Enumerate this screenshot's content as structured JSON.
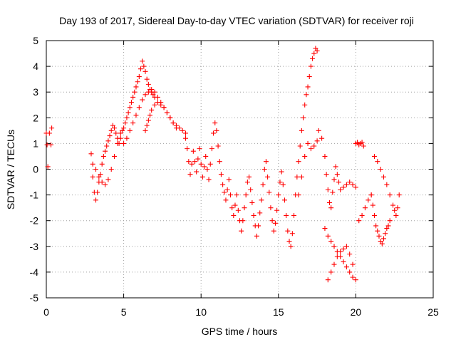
{
  "chart_data": {
    "type": "scatter",
    "title": "Day 193 of 2017, Sidereal Day-to-day VTEC variation (SDTVAR) for receiver roji",
    "xlabel": "GPS time / hours",
    "ylabel": "SDTVAR / TECUs",
    "xlim": [
      0,
      25
    ],
    "ylim": [
      -5,
      5
    ],
    "xticks": [
      0,
      5,
      10,
      15,
      20,
      25
    ],
    "yticks": [
      -5,
      -4,
      -3,
      -2,
      -1,
      0,
      1,
      2,
      3,
      4,
      5
    ],
    "grid": true,
    "marker": "+",
    "color": "#ff0000",
    "series": [
      {
        "name": "SDTVAR",
        "x": [
          0.0,
          0.05,
          0.1,
          0.2,
          0.3,
          0.35,
          2.9,
          3.0,
          3.1,
          3.2,
          3.3,
          3.4,
          3.5,
          3.6,
          3.7,
          3.8,
          3.9,
          4.0,
          4.1,
          4.2,
          4.3,
          4.4,
          4.5,
          4.6,
          4.7,
          4.8,
          4.9,
          3.0,
          3.2,
          3.4,
          3.6,
          3.8,
          4.0,
          4.2,
          4.4,
          4.6,
          4.8,
          5.0,
          5.1,
          5.2,
          5.3,
          5.4,
          5.5,
          5.6,
          5.7,
          5.8,
          5.9,
          6.0,
          6.1,
          6.2,
          6.3,
          6.4,
          6.5,
          6.6,
          6.7,
          6.8,
          6.9,
          7.0,
          5.0,
          5.2,
          5.4,
          5.6,
          5.8,
          6.0,
          6.2,
          6.4,
          6.6,
          6.8,
          7.0,
          7.2,
          7.4,
          7.6,
          7.8,
          8.0,
          8.2,
          8.4,
          6.4,
          6.5,
          6.6,
          6.7,
          6.8,
          7.0,
          7.2,
          7.4,
          7.6,
          7.8,
          8.0,
          8.2,
          8.4,
          8.6,
          8.8,
          9.0,
          9.0,
          9.1,
          9.2,
          9.3,
          9.4,
          9.5,
          9.6,
          9.7,
          9.8,
          9.9,
          10.0,
          10.1,
          10.2,
          10.3,
          10.4,
          10.5,
          10.6,
          10.7,
          10.8,
          10.9,
          11.0,
          11.1,
          11.2,
          11.3,
          11.4,
          11.5,
          11.6,
          11.7,
          11.8,
          11.9,
          12.0,
          12.1,
          12.2,
          12.3,
          12.4,
          12.5,
          12.6,
          12.7,
          12.8,
          12.9,
          13.0,
          13.1,
          13.2,
          13.3,
          13.4,
          13.5,
          13.6,
          13.7,
          13.8,
          13.9,
          14.0,
          14.1,
          14.2,
          14.3,
          14.4,
          14.5,
          14.6,
          14.7,
          14.8,
          14.9,
          15.0,
          15.1,
          15.2,
          15.3,
          15.4,
          15.5,
          15.6,
          15.7,
          15.8,
          15.9,
          16.0,
          16.1,
          16.2,
          16.3,
          16.4,
          16.5,
          16.6,
          16.7,
          16.8,
          16.9,
          17.0,
          17.1,
          17.2,
          17.3,
          17.4,
          17.5,
          16.3,
          16.5,
          16.7,
          16.9,
          17.1,
          17.3,
          17.5,
          17.6,
          17.8,
          18.0,
          18.1,
          18.2,
          18.3,
          18.4,
          18.5,
          18.6,
          18.7,
          18.8,
          18.9,
          19.0,
          19.2,
          19.4,
          19.6,
          19.8,
          20.0,
          18.0,
          18.2,
          18.4,
          18.6,
          18.8,
          19.0,
          19.2,
          19.4,
          19.6,
          19.8,
          18.2,
          18.4,
          18.6,
          18.8,
          19.0,
          19.2,
          19.4,
          19.6,
          19.8,
          20.0,
          20.2,
          20.4,
          20.6,
          20.8,
          21.0,
          20.0,
          20.1,
          20.2,
          20.3,
          20.4,
          20.5,
          21.0,
          21.1,
          21.2,
          21.3,
          21.4,
          21.5,
          21.6,
          21.7,
          21.8,
          21.9,
          22.0,
          22.1,
          22.2,
          21.2,
          21.4,
          21.6,
          21.8,
          22.0,
          22.2,
          22.4,
          22.5,
          22.6,
          22.7,
          22.8
        ],
        "y": [
          1.4,
          0.95,
          0.1,
          1.4,
          0.95,
          1.6,
          0.6,
          -0.3,
          -0.9,
          -1.2,
          -0.9,
          -0.5,
          -0.2,
          0.2,
          0.5,
          0.7,
          0.9,
          1.1,
          1.3,
          1.5,
          1.7,
          1.6,
          1.4,
          1.2,
          1.0,
          1.2,
          1.5,
          0.2,
          0.0,
          -0.3,
          -0.5,
          -0.6,
          -0.4,
          0.0,
          0.5,
          1.0,
          1.4,
          1.6,
          1.8,
          2.0,
          2.2,
          2.4,
          2.6,
          2.8,
          3.0,
          3.2,
          3.4,
          3.6,
          3.9,
          4.2,
          4.0,
          3.8,
          3.5,
          3.3,
          3.1,
          3.0,
          2.9,
          2.8,
          1.0,
          1.2,
          1.5,
          1.8,
          2.1,
          2.4,
          2.7,
          2.9,
          3.0,
          3.1,
          3.0,
          2.8,
          2.6,
          2.4,
          2.2,
          2.0,
          1.8,
          1.6,
          1.5,
          1.7,
          1.9,
          2.1,
          2.3,
          2.5,
          2.6,
          2.5,
          2.4,
          2.2,
          2.0,
          1.8,
          1.7,
          1.6,
          1.5,
          1.4,
          1.2,
          0.8,
          0.3,
          -0.2,
          0.2,
          0.7,
          0.3,
          -0.1,
          0.4,
          0.8,
          0.2,
          -0.3,
          0.1,
          0.5,
          0.0,
          -0.4,
          0.2,
          0.8,
          1.4,
          1.8,
          1.5,
          0.9,
          0.3,
          -0.2,
          -0.6,
          -0.9,
          -1.2,
          -0.8,
          -0.4,
          -1.0,
          -1.5,
          -1.8,
          -1.4,
          -1.0,
          -1.6,
          -2.0,
          -2.4,
          -2.0,
          -1.5,
          -1.0,
          -0.5,
          -0.3,
          -0.8,
          -1.3,
          -1.8,
          -2.2,
          -2.6,
          -2.2,
          -1.7,
          -1.2,
          -0.6,
          0.0,
          0.3,
          -0.3,
          -0.9,
          -1.5,
          -2.0,
          -2.4,
          -2.1,
          -1.6,
          -1.0,
          -0.5,
          -0.1,
          -0.6,
          -1.2,
          -1.8,
          -2.4,
          -2.8,
          -3.0,
          -2.5,
          -1.8,
          -1.0,
          -0.3,
          0.3,
          0.9,
          1.5,
          2.0,
          2.5,
          2.9,
          3.2,
          3.6,
          4.0,
          4.3,
          4.5,
          4.7,
          4.6,
          -1.0,
          -0.3,
          0.5,
          1.0,
          0.8,
          0.9,
          1.1,
          1.5,
          1.2,
          0.5,
          -0.2,
          -0.8,
          -1.3,
          -1.5,
          -0.9,
          -0.4,
          0.1,
          -0.2,
          -0.5,
          -0.8,
          -0.7,
          -0.6,
          -0.5,
          -0.6,
          -0.7,
          -2.3,
          -2.6,
          -2.8,
          -3.0,
          -3.2,
          -3.4,
          -3.6,
          -3.8,
          -4.0,
          -4.2,
          -4.3,
          -4.0,
          -3.7,
          -3.4,
          -3.2,
          -3.1,
          -3.0,
          -3.3,
          -3.7,
          -4.3,
          -2.0,
          -1.8,
          -1.5,
          -1.2,
          -1.0,
          1.0,
          1.05,
          0.95,
          1.0,
          1.05,
          0.9,
          -1.0,
          -1.4,
          -1.8,
          -2.2,
          -2.4,
          -2.6,
          -2.8,
          -2.9,
          -2.7,
          -2.5,
          -2.3,
          -2.2,
          -2.0,
          0.5,
          0.3,
          0.0,
          -0.3,
          -0.6,
          -1.0,
          -1.4,
          -1.6,
          -1.8,
          -1.5,
          -1.0
        ]
      }
    ]
  }
}
